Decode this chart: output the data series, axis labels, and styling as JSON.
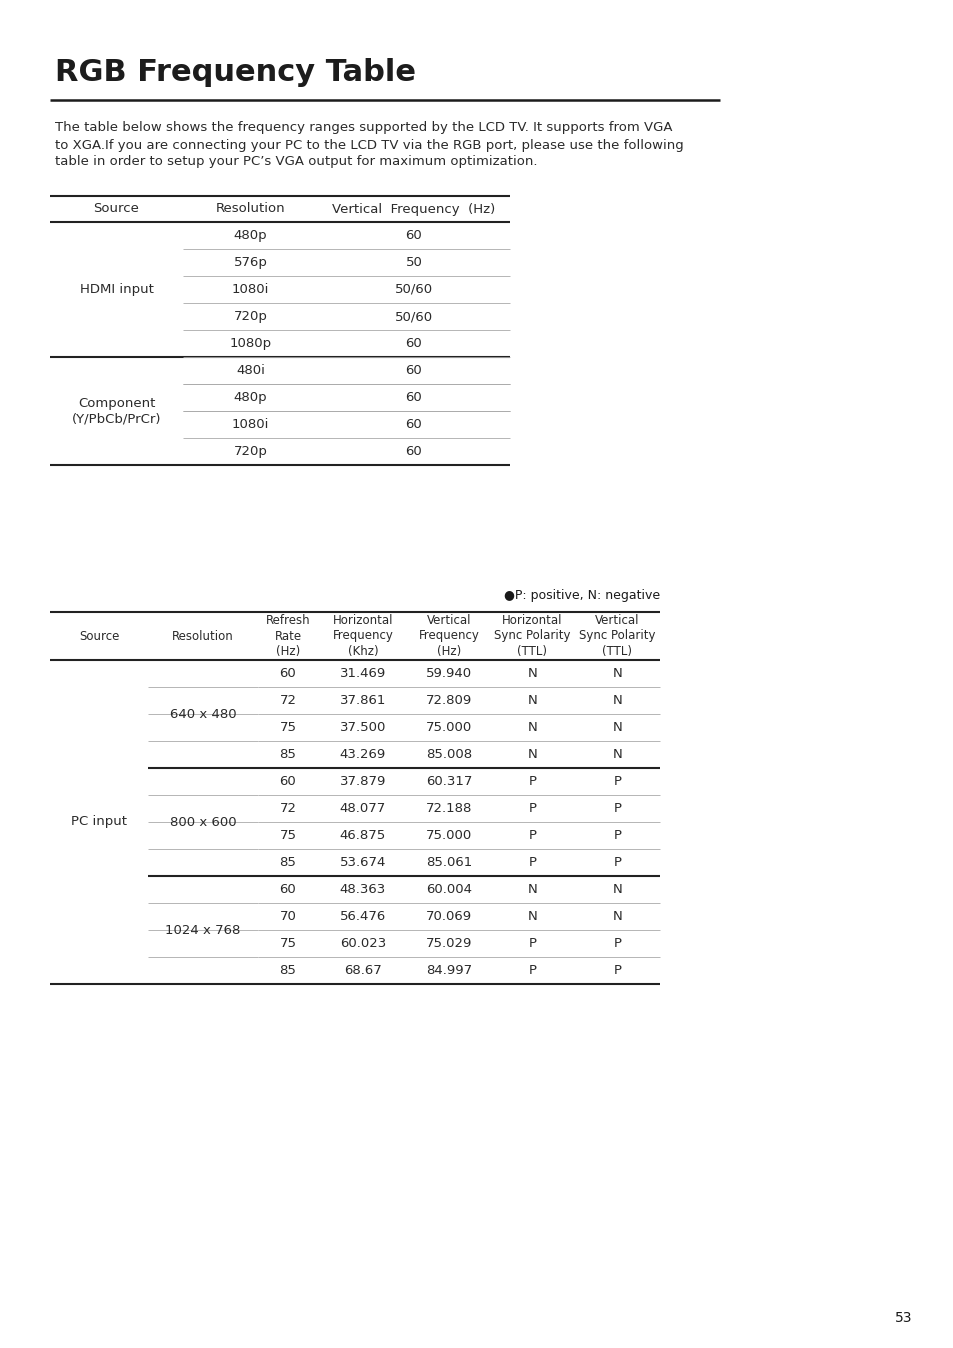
{
  "title": "RGB Frequency Table",
  "desc_lines": [
    "The table below shows the frequency ranges supported by the LCD TV. It supports from VGA",
    "to XGA.If you are connecting your PC to the LCD TV via the RGB port, please use the following",
    "table in order to setup your PC’s VGA output for maximum optimization."
  ],
  "bg_color": "#ffffff",
  "text_color": "#2a2a2a",
  "t1_headers": [
    "Source",
    "Resolution",
    "Vertical  Frequency  (Hz)"
  ],
  "t1_resolutions": [
    "480p",
    "576p",
    "1080i",
    "720p",
    "1080p",
    "480i",
    "480p",
    "1080i",
    "720p"
  ],
  "t1_vfreqs": [
    "60",
    "50",
    "50/60",
    "50/60",
    "60",
    "60",
    "60",
    "60",
    "60"
  ],
  "t1_hdmi_rows": 5,
  "t1_comp_rows": 4,
  "t1_source_hdmi": "HDMI input",
  "t1_source_comp": "Component\n(Y/PbCb/PrCr)",
  "polarity_note": "●P: positive, N: negative",
  "t2_headers": [
    "Source",
    "Resolution",
    "Refresh\nRate\n(Hz)",
    "Horizontal\nFrequency\n(Khz)",
    "Vertical\nFrequency\n(Hz)",
    "Horizontal\nSync Polarity\n(TTL)",
    "Vertical\nSync Polarity\n(TTL)"
  ],
  "t2_source": "PC input",
  "t2_resolutions": [
    "640 x 480",
    "800 x 600",
    "1024 x 768"
  ],
  "t2_res_rows": [
    4,
    4,
    4
  ],
  "t2_rows": [
    [
      "60",
      "31.469",
      "59.940",
      "N",
      "N"
    ],
    [
      "72",
      "37.861",
      "72.809",
      "N",
      "N"
    ],
    [
      "75",
      "37.500",
      "75.000",
      "N",
      "N"
    ],
    [
      "85",
      "43.269",
      "85.008",
      "N",
      "N"
    ],
    [
      "60",
      "37.879",
      "60.317",
      "P",
      "P"
    ],
    [
      "72",
      "48.077",
      "72.188",
      "P",
      "P"
    ],
    [
      "75",
      "46.875",
      "75.000",
      "P",
      "P"
    ],
    [
      "85",
      "53.674",
      "85.061",
      "P",
      "P"
    ],
    [
      "60",
      "48.363",
      "60.004",
      "N",
      "N"
    ],
    [
      "70",
      "56.476",
      "70.069",
      "N",
      "N"
    ],
    [
      "75",
      "60.023",
      "75.029",
      "P",
      "P"
    ],
    [
      "85",
      "68.67",
      "84.997",
      "P",
      "P"
    ]
  ],
  "page_number": "53"
}
